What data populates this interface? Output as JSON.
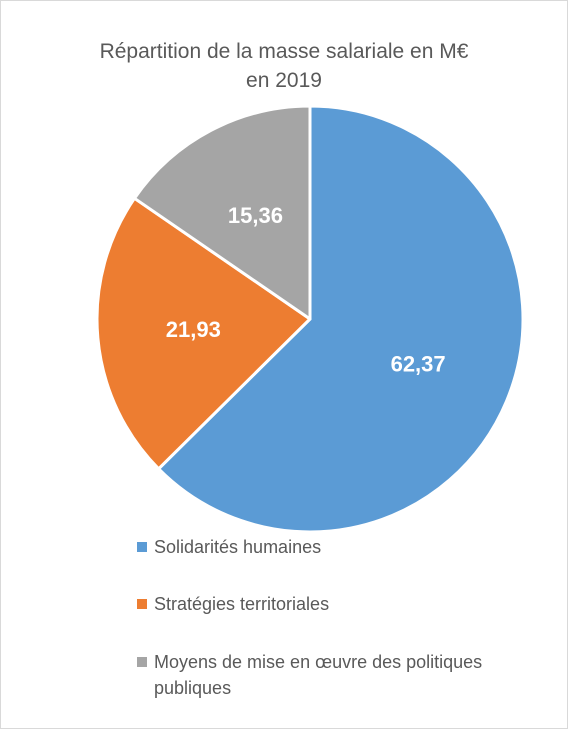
{
  "chart_data": {
    "type": "pie",
    "title_lines": [
      "Répartition de la masse salariale en M€",
      "en 2019"
    ],
    "categories": [
      "Solidarités humaines",
      "Stratégies territoriales",
      "Moyens de mise en œuvre des politiques publiques"
    ],
    "values": [
      62.37,
      21.93,
      15.36
    ],
    "data_labels": [
      "62,37",
      "21,93",
      "15,36"
    ],
    "colors": [
      "#5b9bd5",
      "#ed7d31",
      "#a5a5a5"
    ],
    "legend_position": "bottom"
  }
}
